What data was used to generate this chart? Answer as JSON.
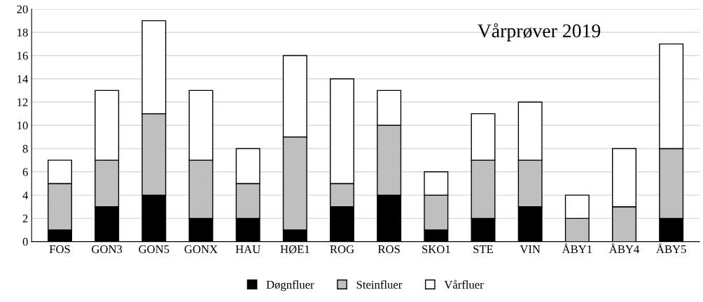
{
  "chart_data": {
    "type": "bar",
    "title": "Vårprøver 2019",
    "stacked": true,
    "categories": [
      "FOS",
      "GON3",
      "GON5",
      "GONX",
      "HAU",
      "HØE1",
      "ROG",
      "ROS",
      "SKO1",
      "STE",
      "VIN",
      "ÅBY1",
      "ÅBY4",
      "ÅBY5"
    ],
    "series": [
      {
        "name": "Døgnfluer",
        "color": "#000000",
        "values": [
          1,
          3,
          4,
          2,
          2,
          1,
          3,
          4,
          1,
          2,
          3,
          0,
          0,
          2
        ]
      },
      {
        "name": "Steinfluer",
        "color": "#bfbfbf",
        "values": [
          4,
          4,
          7,
          5,
          3,
          8,
          2,
          6,
          3,
          5,
          4,
          2,
          3,
          6
        ]
      },
      {
        "name": "Vårfluer",
        "color": "#ffffff",
        "values": [
          2,
          6,
          8,
          6,
          3,
          7,
          9,
          3,
          2,
          4,
          5,
          2,
          5,
          9
        ]
      }
    ],
    "ylim": [
      0,
      20
    ],
    "yticks": [
      0,
      2,
      4,
      6,
      8,
      10,
      12,
      14,
      16,
      18,
      20
    ],
    "grid": "y",
    "legend": "bottom"
  }
}
